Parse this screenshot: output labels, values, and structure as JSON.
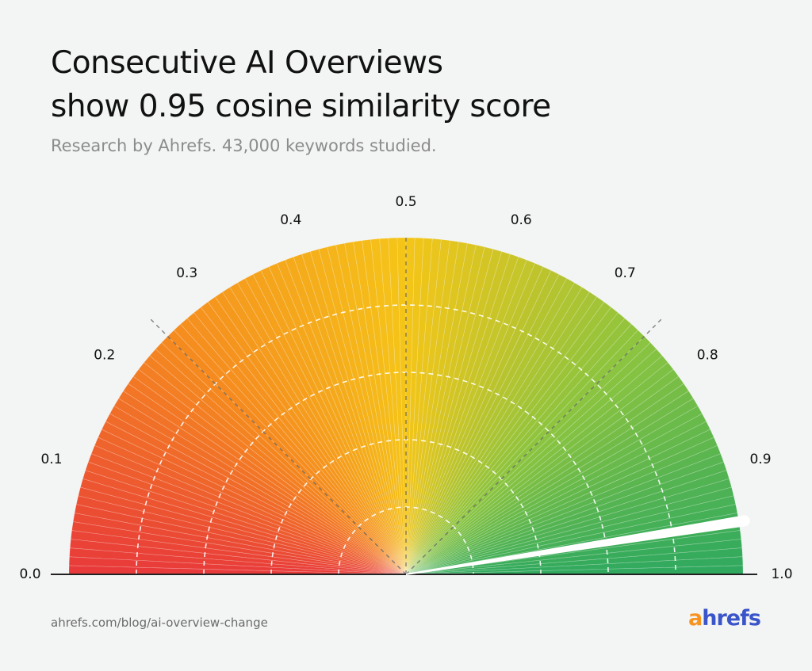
{
  "header": {
    "title_line1": "Consecutive AI Overviews",
    "title_line2": "show 0.95 cosine similarity score",
    "subtitle": "Research by Ahrefs. 43,000 keywords studied."
  },
  "footer": {
    "source": "ahrefs.com/blog/ai-overview-change",
    "logo_text": "ahrefs",
    "logo_a": "a",
    "logo_rest": "hrefs"
  },
  "chart_data": {
    "type": "gauge",
    "value": 0.95,
    "range": [
      0.0,
      1.0
    ],
    "tick_labels": [
      "0.0",
      "0.1",
      "0.2",
      "0.3",
      "0.4",
      "0.5",
      "0.6",
      "0.7",
      "0.8",
      "0.9",
      "1.0"
    ],
    "color_stops": [
      "#e8393a",
      "#f58a1f",
      "#f5c518",
      "#8cc43f",
      "#2ea95f"
    ],
    "needle_color": "#ffffff",
    "grid": true
  }
}
